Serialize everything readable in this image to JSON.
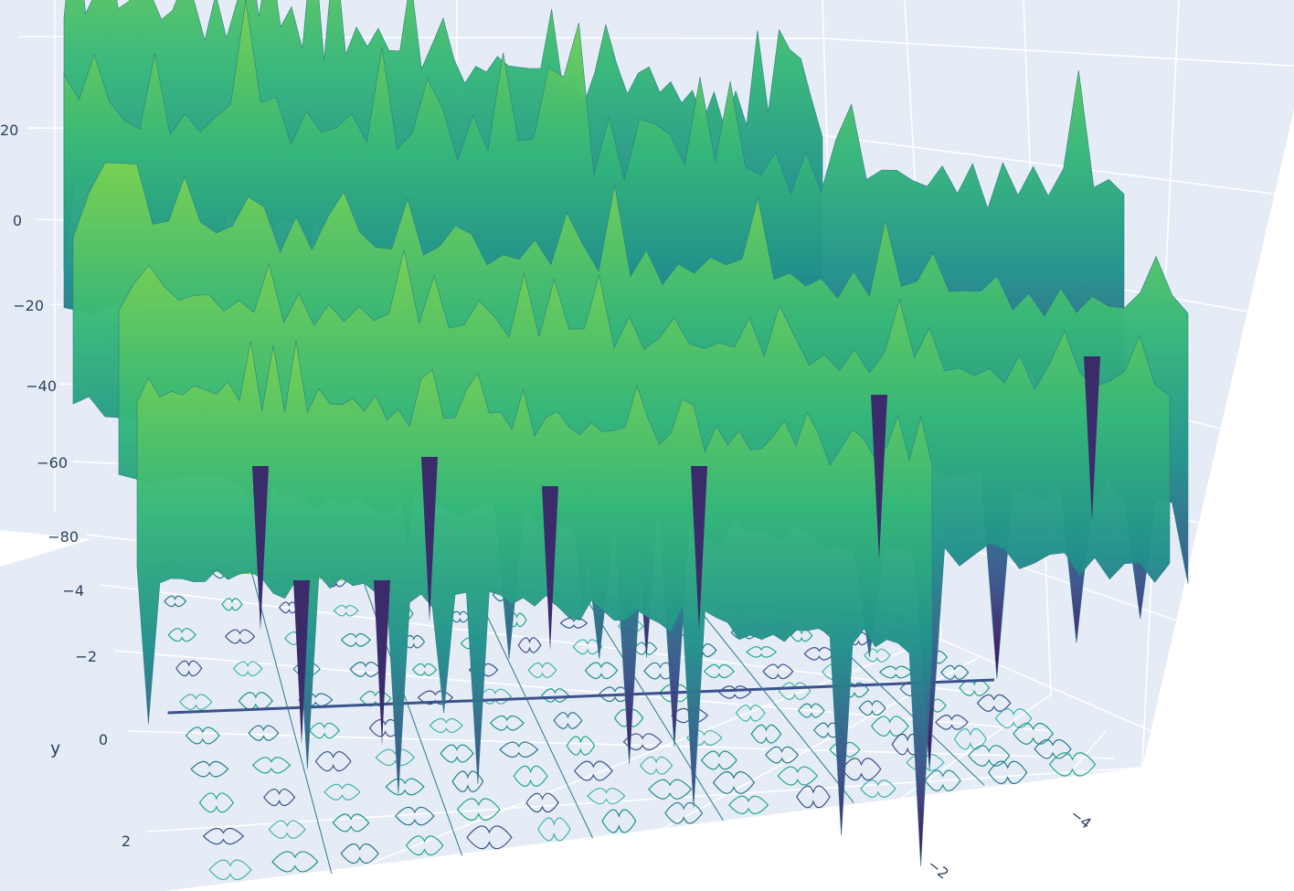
{
  "chart_data": {
    "type": "surface",
    "colorscale": "Viridis",
    "contours_projected_on": "floor",
    "scene_background": "#e5ecf6",
    "gridline_color": "#ffffff",
    "tick_label_color": "#2a3f5f",
    "axes": {
      "z": {
        "ticks": [
          "20",
          "0",
          "−20",
          "−40",
          "−60",
          "−80"
        ],
        "range": [
          -90,
          35
        ]
      },
      "y": {
        "title": "y",
        "ticks": [
          "−4",
          "−2",
          "0",
          "2"
        ]
      },
      "x": {
        "ticks": [
          "−4",
          "−2"
        ]
      }
    },
    "surface": {
      "x_range": [
        -5,
        5
      ],
      "y_range": [
        -5,
        5
      ],
      "grid": true,
      "description": "oscillatory surface with periodic ridges and deep narrow spikes"
    }
  }
}
